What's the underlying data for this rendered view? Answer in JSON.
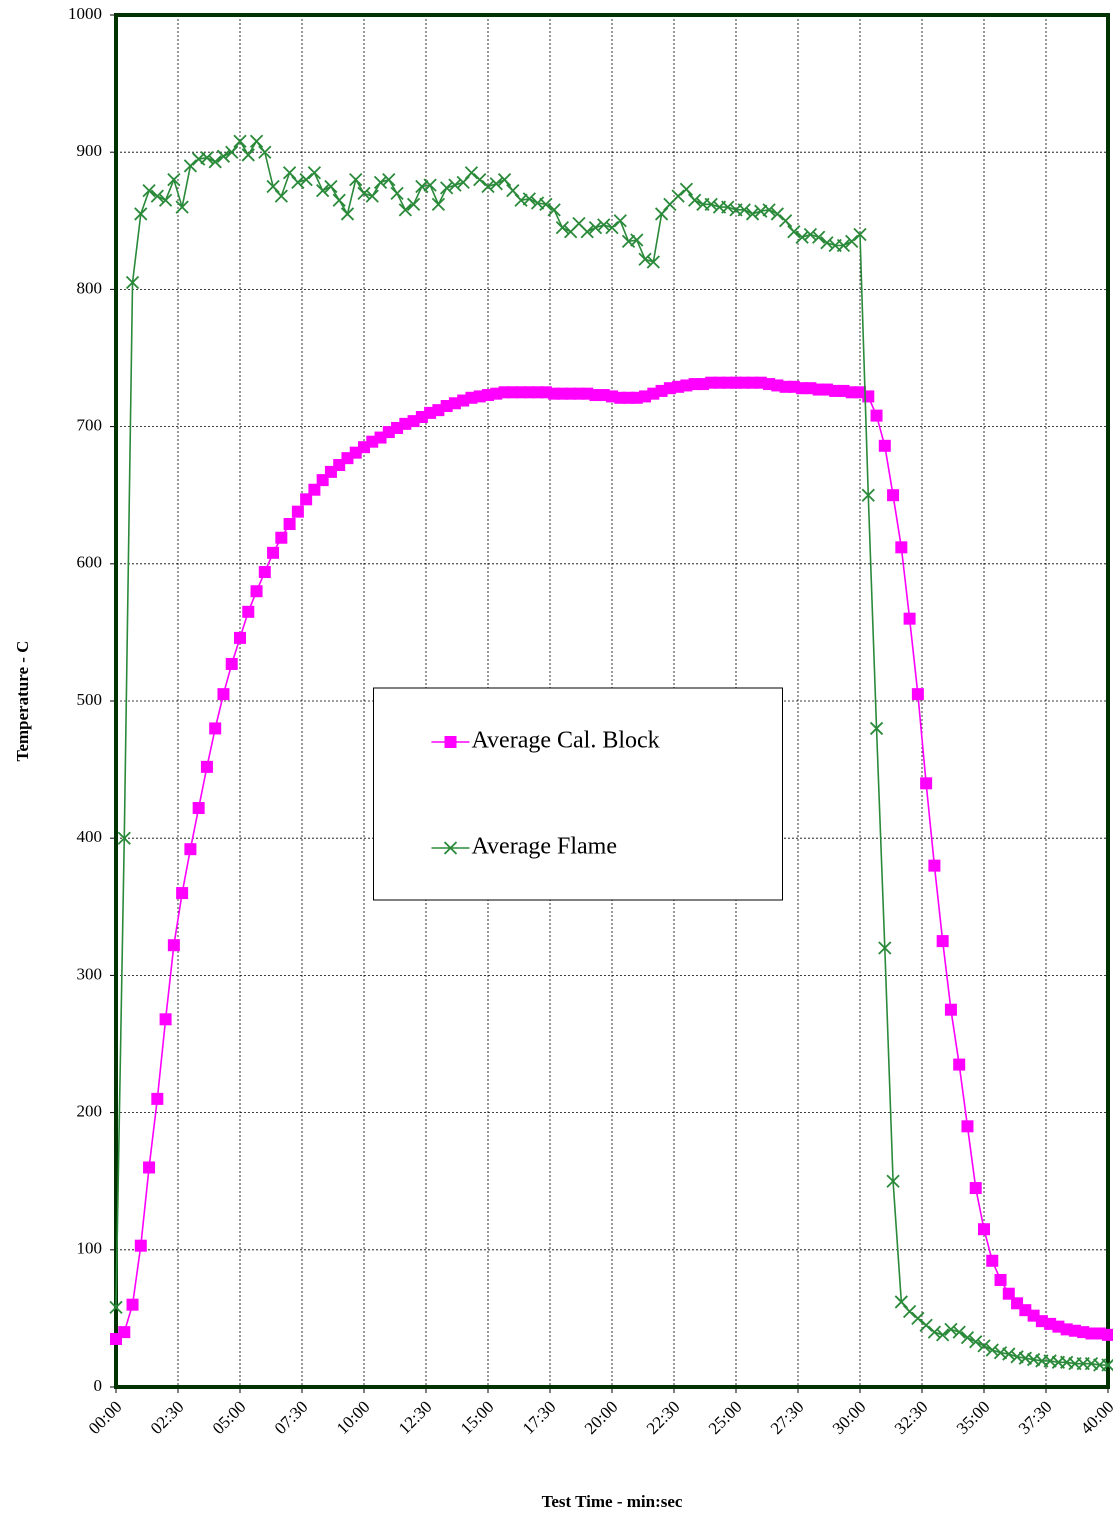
{
  "chart_data": {
    "type": "line",
    "y_label": "Temperature - C",
    "x_label": "Test Time - min:sec",
    "xlim": [
      0,
      2400
    ],
    "ylim": [
      0,
      1000
    ],
    "yticks": [
      0,
      100,
      200,
      300,
      400,
      500,
      600,
      700,
      800,
      900,
      1000
    ],
    "xticks": [
      {
        "value": 0,
        "label": "00:00"
      },
      {
        "value": 150,
        "label": "02:30"
      },
      {
        "value": 300,
        "label": "05:00"
      },
      {
        "value": 450,
        "label": "07:30"
      },
      {
        "value": 600,
        "label": "10:00"
      },
      {
        "value": 750,
        "label": "12:30"
      },
      {
        "value": 900,
        "label": "15:00"
      },
      {
        "value": 1050,
        "label": "17:30"
      },
      {
        "value": 1200,
        "label": "20:00"
      },
      {
        "value": 1350,
        "label": "22:30"
      },
      {
        "value": 1500,
        "label": "25:00"
      },
      {
        "value": 1650,
        "label": "27:30"
      },
      {
        "value": 1800,
        "label": "30:00"
      },
      {
        "value": 1950,
        "label": "32:30"
      },
      {
        "value": 2100,
        "label": "35:00"
      },
      {
        "value": 2250,
        "label": "37:30"
      },
      {
        "value": 2400,
        "label": "40:00"
      }
    ],
    "grid": true,
    "legend": "center",
    "x": [
      0,
      20,
      40,
      60,
      80,
      100,
      120,
      140,
      160,
      180,
      200,
      220,
      240,
      260,
      280,
      300,
      320,
      340,
      360,
      380,
      400,
      420,
      440,
      460,
      480,
      500,
      520,
      540,
      560,
      580,
      600,
      620,
      640,
      660,
      680,
      700,
      720,
      740,
      760,
      780,
      800,
      820,
      840,
      860,
      880,
      900,
      920,
      940,
      960,
      980,
      1000,
      1020,
      1040,
      1060,
      1080,
      1100,
      1120,
      1140,
      1160,
      1180,
      1200,
      1220,
      1240,
      1260,
      1280,
      1300,
      1320,
      1340,
      1360,
      1380,
      1400,
      1420,
      1440,
      1460,
      1480,
      1500,
      1520,
      1540,
      1560,
      1580,
      1600,
      1620,
      1640,
      1660,
      1680,
      1700,
      1720,
      1740,
      1760,
      1780,
      1800,
      1820,
      1840,
      1860,
      1880,
      1900,
      1920,
      1940,
      1960,
      1980,
      2000,
      2020,
      2040,
      2060,
      2080,
      2100,
      2120,
      2140,
      2160,
      2180,
      2200,
      2220,
      2240,
      2260,
      2280,
      2300,
      2320,
      2340,
      2360,
      2380,
      2400
    ],
    "series": [
      {
        "name": "Average Cal. Block",
        "color": "#ff00ff",
        "marker": "square",
        "values": [
          35,
          40,
          60,
          103,
          160,
          210,
          268,
          322,
          360,
          392,
          422,
          452,
          480,
          505,
          527,
          546,
          565,
          580,
          594,
          608,
          619,
          629,
          638,
          647,
          654,
          661,
          667,
          672,
          677,
          681,
          685,
          689,
          692,
          696,
          699,
          702,
          704,
          707,
          710,
          712,
          715,
          717,
          719,
          721,
          722,
          723,
          724,
          725,
          725,
          725,
          725,
          725,
          725,
          724,
          724,
          724,
          724,
          724,
          723,
          723,
          722,
          721,
          721,
          721,
          722,
          724,
          726,
          728,
          729,
          730,
          731,
          731,
          732,
          732,
          732,
          732,
          732,
          732,
          732,
          731,
          730,
          729,
          729,
          728,
          728,
          727,
          727,
          726,
          726,
          725,
          725,
          722,
          708,
          686,
          650,
          612,
          560,
          505,
          440,
          380,
          325,
          275,
          235,
          190,
          145,
          115,
          92,
          78,
          68,
          61,
          56,
          52,
          48,
          46,
          44,
          42,
          41,
          40,
          39,
          39,
          38
        ]
      },
      {
        "name": "Average Flame",
        "color": "#2a8a3a",
        "marker": "x",
        "values": [
          58,
          400,
          805,
          855,
          872,
          868,
          865,
          880,
          860,
          890,
          895,
          896,
          893,
          897,
          900,
          908,
          898,
          908,
          900,
          875,
          868,
          885,
          878,
          880,
          885,
          872,
          875,
          865,
          855,
          880,
          870,
          868,
          878,
          880,
          870,
          858,
          862,
          875,
          876,
          862,
          874,
          876,
          878,
          885,
          880,
          875,
          877,
          880,
          872,
          865,
          866,
          863,
          862,
          858,
          845,
          842,
          848,
          842,
          845,
          847,
          845,
          850,
          835,
          836,
          822,
          820,
          855,
          862,
          868,
          873,
          865,
          862,
          862,
          860,
          860,
          858,
          858,
          855,
          857,
          858,
          855,
          850,
          842,
          838,
          840,
          838,
          834,
          832,
          832,
          835,
          840,
          650,
          480,
          320,
          150,
          62,
          55,
          50,
          45,
          40,
          38,
          42,
          40,
          36,
          33,
          30,
          27,
          25,
          24,
          22,
          21,
          20,
          19,
          19,
          18,
          18,
          17,
          17,
          17,
          16,
          16
        ]
      }
    ]
  }
}
